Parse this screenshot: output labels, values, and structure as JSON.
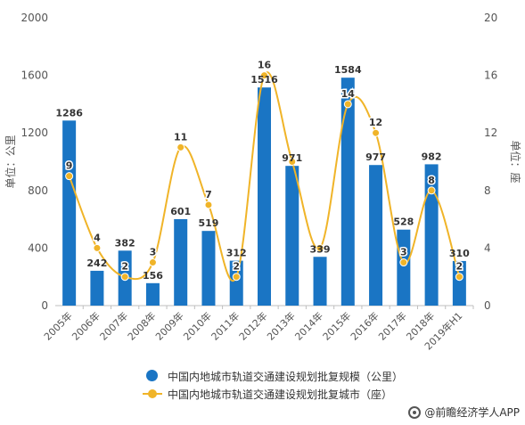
{
  "chart_data": {
    "type": "bar+line",
    "categories": [
      "2005年",
      "2006年",
      "2007年",
      "2008年",
      "2009年",
      "2010年",
      "2011年",
      "2012年",
      "2013年",
      "2014年",
      "2015年",
      "2016年",
      "2017年",
      "2018年",
      "2019年H1"
    ],
    "series": [
      {
        "name": "中国内地城市轨道交通建设规划批复规模（公里）",
        "type": "bar",
        "axis": "left",
        "values": [
          1286,
          242,
          382,
          156,
          601,
          519,
          312,
          1516,
          971,
          339,
          1584,
          977,
          528,
          982,
          310
        ]
      },
      {
        "name": "中国内地城市轨道交通建设规划批复城市（座）",
        "type": "line",
        "axis": "right",
        "values": [
          9,
          4,
          2,
          3,
          11,
          7,
          2,
          16,
          10,
          4,
          14,
          12,
          3,
          8,
          2
        ],
        "value_labels": [
          "9",
          "4",
          "2",
          "3",
          "11",
          "7",
          "2",
          "16",
          "",
          "",
          "14",
          "12",
          "3",
          "8",
          "2"
        ]
      }
    ],
    "ylabel_left": "单位：公里",
    "ylabel_right": "单位：座",
    "ylim_left": [
      0,
      2000
    ],
    "yticks_left": [
      "0",
      "400",
      "800",
      "1200",
      "1600",
      "2000"
    ],
    "ylim_right": [
      0,
      20
    ],
    "yticks_right": [
      "0",
      "4",
      "8",
      "12",
      "16",
      "20"
    ],
    "grid": false,
    "legend_position": "bottom",
    "colors": {
      "bar": "#1a75c4",
      "line": "#f0b428"
    }
  },
  "legend": {
    "bar_label": "中国内地城市轨道交通建设规划批复规模（公里）",
    "line_label": "中国内地城市轨道交通建设规划批复城市（座）"
  },
  "footer": {
    "source": "@前瞻经济学人APP"
  }
}
